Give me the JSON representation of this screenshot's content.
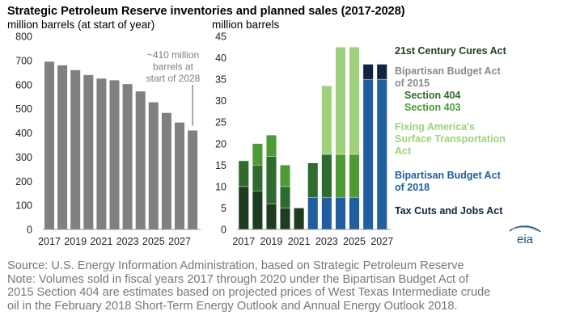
{
  "colors": {
    "inventory_bar": "#808080",
    "cures": "#1e3d1e",
    "bba2015_404": "#2f6b2f",
    "bba2015_403": "#4e9a35",
    "fast": "#9fd17c",
    "bba2018": "#1f5fa0",
    "tcja": "#0f2440",
    "title": "#000000",
    "axis_text": "#222222",
    "bipartisan2015_label": "#8a8a8a",
    "annotation": "#7f7f7f",
    "note_text": "#777777",
    "logo": "#1f4e79"
  },
  "logo_text": "eia",
  "chart_data": [
    {
      "type": "bar",
      "title": "Strategic Petroleum Reserve inventories and planned sales (2017-2028)",
      "ylabel": "million barrels (at start of year)",
      "ylim": [
        0,
        800
      ],
      "yticks": [
        0,
        100,
        200,
        300,
        400,
        500,
        600,
        700,
        800
      ],
      "grid": false,
      "categories": [
        "2017",
        "2018",
        "2019",
        "2020",
        "2021",
        "2022",
        "2023",
        "2024",
        "2025",
        "2026",
        "2027",
        "2028"
      ],
      "xtick_labels": [
        "2017",
        "2019",
        "2021",
        "2023",
        "2025",
        "2027"
      ],
      "values": [
        695,
        680,
        660,
        640,
        625,
        618,
        602,
        572,
        527,
        483,
        443,
        410
      ],
      "annotation": {
        "lines": [
          "~410 million",
          "barrels at",
          "start of 2028"
        ],
        "target": "2028"
      }
    },
    {
      "type": "bar",
      "stacked": true,
      "ylabel": "million barrels",
      "ylim": [
        0,
        45
      ],
      "yticks": [
        0,
        5,
        10,
        15,
        20,
        25,
        30,
        35,
        40,
        45
      ],
      "grid": false,
      "categories": [
        "2017",
        "2018",
        "2019",
        "2020",
        "2021",
        "2022",
        "2023",
        "2024",
        "2025",
        "2026",
        "2027"
      ],
      "xtick_labels": [
        "2017",
        "2019",
        "2021",
        "2023",
        "2025",
        "2027"
      ],
      "series": [
        {
          "name": "21st Century Cures Act",
          "color_key": "cures",
          "values": [
            10,
            9,
            6,
            5,
            5,
            0,
            0,
            0,
            0,
            0,
            0
          ]
        },
        {
          "name": "Section 404",
          "color_key": "bba2015_404",
          "values": [
            6,
            6,
            11,
            5,
            0,
            0,
            0,
            0,
            0,
            0,
            0
          ]
        },
        {
          "name": "Section 403",
          "color_key": "bba2015_403",
          "values": [
            0,
            5,
            5,
            5,
            0,
            0,
            0,
            10,
            10,
            0,
            0
          ]
        },
        {
          "name": "Fixing America's Surface Transportation Act",
          "color_key": "fast",
          "values": [
            0,
            0,
            0,
            0,
            0,
            0,
            0,
            25,
            25,
            0,
            0
          ]
        },
        {
          "name": "Bipartisan Budget Act of 2018",
          "color_key": "bba2018",
          "values": [
            0,
            0,
            0,
            0,
            0,
            7.5,
            7.5,
            7.5,
            7.5,
            35,
            35
          ]
        },
        {
          "name": "Tax Cuts and Jobs Act",
          "color_key": "tcja",
          "values": [
            0,
            0,
            0,
            0,
            0,
            0,
            0,
            0,
            0,
            3.5,
            3.5
          ]
        }
      ],
      "extra_segments": [
        {
          "category": "2022",
          "color_key": "bba2015_404",
          "value": 8
        },
        {
          "category": "2023",
          "color_key": "bba2015_404",
          "value": 10
        },
        {
          "category": "2023",
          "color_key": "fast",
          "value": 16
        }
      ]
    }
  ],
  "legend": {
    "cures": "21st Century Cures Act",
    "bipartisan_2015_line1": "Bipartisan Budget Act",
    "bipartisan_2015_line2": "of 2015",
    "section_404": "Section 404",
    "section_403": "Section 403",
    "fast_line1": "Fixing America's",
    "fast_line2": "Surface Transportation",
    "fast_line3": "Act",
    "bba2018_line1": "Bipartisan Budget Act",
    "bba2018_line2": "of 2018",
    "tcja": "Tax Cuts and Jobs Act"
  },
  "notes": {
    "source": "Source: U.S. Energy Information Administration, based on Strategic Petroleum Reserve",
    "note_line1": "Note: Volumes sold in fiscal years 2017 through 2020 under the Bipartisan Budget Act of",
    "note_line2": "2015 Section 404 are estimates based on projected prices of West Texas Intermediate crude",
    "note_line3": "oil in the February 2018 Short-Term Energy Outlook and Annual Energy Outlook 2018."
  }
}
